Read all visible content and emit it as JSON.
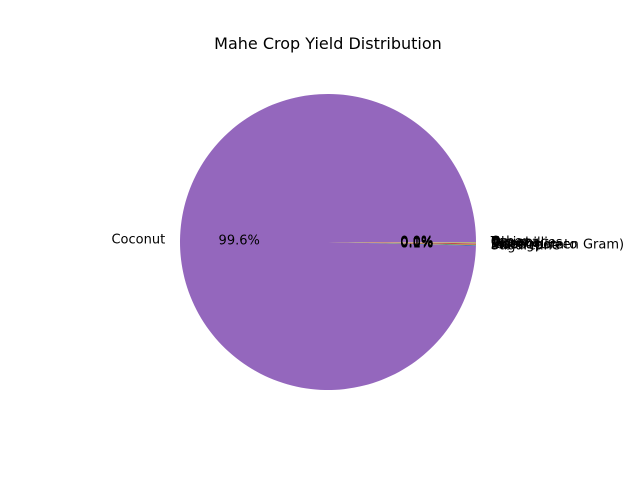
{
  "chart_data": {
    "type": "pie",
    "title": "Mahe Crop Yield Distribution",
    "start_angle_deg": 0,
    "counterclockwise": true,
    "labels": [
      "Coconut",
      "Sugarcane",
      "Sweet potato",
      "Moong(Green Gram)",
      "Rice",
      "Banana",
      "Dry chillies",
      "Tapioca",
      "Other"
    ],
    "values": [
      99.6,
      0.06,
      0.05,
      0.04,
      0.06,
      0.05,
      0.05,
      0.05,
      0.04
    ],
    "percent_labels": [
      "99.6%",
      "0.1%",
      "0.0%",
      "0.0%",
      "0.1%",
      "0.0%",
      "0.0%",
      "0.0%",
      "0.0%"
    ],
    "colors": [
      "#9467bd",
      "#1f77b4",
      "#ff7f0e",
      "#2ca02c",
      "#d62728",
      "#8c564b",
      "#e377c2",
      "#7f7f7f",
      "#bcbd22"
    ]
  }
}
